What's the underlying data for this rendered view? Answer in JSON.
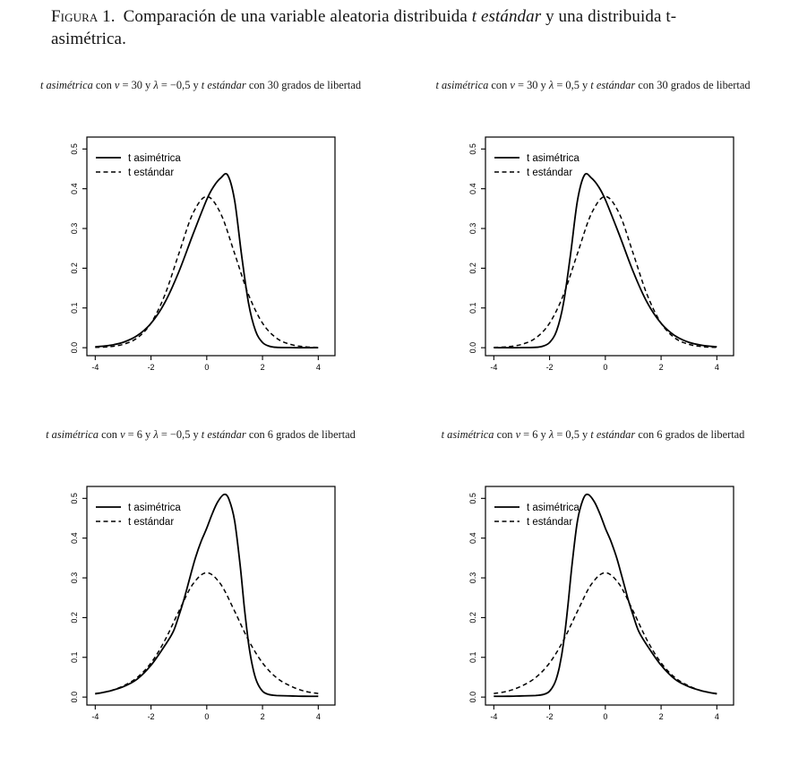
{
  "page": {
    "background": "#ffffff",
    "ink_color": "#000000"
  },
  "caption": {
    "label": "Figura 1.",
    "parts": [
      {
        "t": "Comparación de una variable aleatoria distribuida ",
        "i": false
      },
      {
        "t": "t estándar",
        "i": true
      },
      {
        "t": " y una distribuida t-asimétrica.",
        "i": false
      }
    ]
  },
  "legend": {
    "position": "top-left",
    "entries": [
      {
        "label": "t asimétrica",
        "line": "solid"
      },
      {
        "label": "t estándar",
        "line": "dashed"
      }
    ]
  },
  "axes": {
    "xticks": [
      -4,
      -2,
      0,
      2,
      4
    ],
    "ytick_labels": [
      "0.0",
      "0.1",
      "0.2",
      "0.3",
      "0.4",
      "0.5"
    ],
    "ytick_values": [
      0,
      0.1,
      0.2,
      0.3,
      0.4,
      0.5
    ],
    "xlim": [
      -4.3,
      4.6
    ],
    "ylim": [
      -0.02,
      0.53
    ],
    "xlabel": "",
    "ylabel": ""
  },
  "chart_data": [
    {
      "id": "nu30-lambda-neg05",
      "type": "line",
      "grid": false,
      "legend_position": "top-left",
      "params": {
        "nu": 30,
        "lambda": -0.5,
        "grados_de_libertad": 30
      },
      "title_parts": [
        {
          "t": "t asimétrica",
          "i": true
        },
        {
          "t": " con ",
          "i": false
        },
        {
          "t": "ν",
          "i": true
        },
        {
          "t": " = 30 y ",
          "i": false
        },
        {
          "t": "λ",
          "i": true
        },
        {
          "t": " = −0,5 y ",
          "i": false
        },
        {
          "t": "t estándar",
          "i": true
        },
        {
          "t": " con 30 grados de libertad",
          "i": false
        }
      ],
      "series": [
        {
          "name": "t asimétrica",
          "style": "solid",
          "peak": {
            "x": 0.75,
            "y": 0.434
          },
          "points": [
            [
              -4,
              0.0023
            ],
            [
              -3.5,
              0.0058
            ],
            [
              -3,
              0.0136
            ],
            [
              -2.5,
              0.0301
            ],
            [
              -2,
              0.0614
            ],
            [
              -1.5,
              0.1139
            ],
            [
              -1,
              0.1911
            ],
            [
              -0.5,
              0.2843
            ],
            [
              0,
              0.3727
            ],
            [
              0.25,
              0.4058
            ],
            [
              0.5,
              0.4271
            ],
            [
              0.75,
              0.4343
            ],
            [
              1,
              0.37
            ],
            [
              1.25,
              0.2334
            ],
            [
              1.5,
              0.1119
            ],
            [
              1.75,
              0.0424
            ],
            [
              2,
              0.0132
            ],
            [
              2.25,
              0.0036
            ],
            [
              2.5,
              0.0009
            ],
            [
              3,
              0.0002
            ],
            [
              3.5,
              0.0001
            ],
            [
              4,
              0.0001
            ]
          ]
        },
        {
          "name": "t estándar",
          "style": "dashed",
          "peak": {
            "x": 0,
            "y": 0.38
          },
          "points": [
            [
              -4,
              0.0007
            ],
            [
              -3.5,
              0.0025
            ],
            [
              -3,
              0.0083
            ],
            [
              -2.5,
              0.0242
            ],
            [
              -2,
              0.0618
            ],
            [
              -1.5,
              0.1333
            ],
            [
              -1,
              0.2367
            ],
            [
              -0.5,
              0.3375
            ],
            [
              0,
              0.3805
            ],
            [
              0.5,
              0.3375
            ],
            [
              1,
              0.2367
            ],
            [
              1.5,
              0.1333
            ],
            [
              2,
              0.0618
            ],
            [
              2.5,
              0.0242
            ],
            [
              3,
              0.0083
            ],
            [
              3.5,
              0.0025
            ],
            [
              4,
              0.0007
            ]
          ]
        }
      ]
    },
    {
      "id": "nu30-lambda-pos05",
      "type": "line",
      "grid": false,
      "legend_position": "top-left",
      "params": {
        "nu": 30,
        "lambda": 0.5,
        "grados_de_libertad": 30
      },
      "title_parts": [
        {
          "t": "t asimétrica",
          "i": true
        },
        {
          "t": " con ",
          "i": false
        },
        {
          "t": "ν",
          "i": true
        },
        {
          "t": " = 30 y ",
          "i": false
        },
        {
          "t": "λ",
          "i": true
        },
        {
          "t": " = 0,5 y ",
          "i": false
        },
        {
          "t": "t estándar",
          "i": true
        },
        {
          "t": " con 30 grados de libertad",
          "i": false
        }
      ],
      "series": [
        {
          "name": "t asimétrica",
          "style": "solid",
          "peak": {
            "x": -0.75,
            "y": 0.434
          },
          "points": [
            [
              -4,
              0.0001
            ],
            [
              -3.5,
              0.0001
            ],
            [
              -3,
              0.0002
            ],
            [
              -2.5,
              0.0009
            ],
            [
              -2.25,
              0.0036
            ],
            [
              -2,
              0.0132
            ],
            [
              -1.75,
              0.0424
            ],
            [
              -1.5,
              0.1119
            ],
            [
              -1.25,
              0.2334
            ],
            [
              -1,
              0.37
            ],
            [
              -0.75,
              0.4343
            ],
            [
              -0.5,
              0.4271
            ],
            [
              -0.25,
              0.4058
            ],
            [
              0,
              0.3727
            ],
            [
              0.5,
              0.2843
            ],
            [
              1,
              0.1911
            ],
            [
              1.5,
              0.1139
            ],
            [
              2,
              0.0614
            ],
            [
              2.5,
              0.0301
            ],
            [
              3,
              0.0136
            ],
            [
              3.5,
              0.0058
            ],
            [
              4,
              0.0023
            ]
          ]
        },
        {
          "name": "t estándar",
          "style": "dashed",
          "peak": {
            "x": 0,
            "y": 0.38
          },
          "points": [
            [
              -4,
              0.0007
            ],
            [
              -3.5,
              0.0025
            ],
            [
              -3,
              0.0083
            ],
            [
              -2.5,
              0.0242
            ],
            [
              -2,
              0.0618
            ],
            [
              -1.5,
              0.1333
            ],
            [
              -1,
              0.2367
            ],
            [
              -0.5,
              0.3375
            ],
            [
              0,
              0.3805
            ],
            [
              0.5,
              0.3375
            ],
            [
              1,
              0.2367
            ],
            [
              1.5,
              0.1333
            ],
            [
              2,
              0.0618
            ],
            [
              2.5,
              0.0242
            ],
            [
              3,
              0.0083
            ],
            [
              3.5,
              0.0025
            ],
            [
              4,
              0.0007
            ]
          ]
        }
      ]
    },
    {
      "id": "nu6-lambda-neg05",
      "type": "line",
      "grid": false,
      "legend_position": "top-left",
      "params": {
        "nu": 6,
        "lambda": -0.5,
        "grados_de_libertad": 6
      },
      "title_parts": [
        {
          "t": "t asimétrica",
          "i": true
        },
        {
          "t": " con ",
          "i": false
        },
        {
          "t": "ν",
          "i": true
        },
        {
          "t": " = 6 y ",
          "i": false
        },
        {
          "t": "λ",
          "i": true
        },
        {
          "t": " = −0,5 y ",
          "i": false
        },
        {
          "t": "t estándar",
          "i": true
        },
        {
          "t": " con 6 grados de libertad",
          "i": false
        }
      ],
      "series": [
        {
          "name": "t asimétrica",
          "style": "solid",
          "peak": {
            "x": 0.63,
            "y": 0.51
          },
          "points": [
            [
              -4,
              0.008
            ],
            [
              -3.5,
              0.015
            ],
            [
              -3,
              0.026
            ],
            [
              -2.5,
              0.045
            ],
            [
              -2,
              0.08
            ],
            [
              -1.5,
              0.13
            ],
            [
              -1.2,
              0.165
            ],
            [
              -1,
              0.205
            ],
            [
              -0.8,
              0.25
            ],
            [
              -0.6,
              0.302
            ],
            [
              -0.4,
              0.352
            ],
            [
              -0.2,
              0.392
            ],
            [
              0,
              0.425
            ],
            [
              0.2,
              0.462
            ],
            [
              0.4,
              0.492
            ],
            [
              0.63,
              0.51
            ],
            [
              0.8,
              0.497
            ],
            [
              1,
              0.443
            ],
            [
              1.2,
              0.33
            ],
            [
              1.35,
              0.225
            ],
            [
              1.5,
              0.135
            ],
            [
              1.65,
              0.075
            ],
            [
              1.8,
              0.038
            ],
            [
              2,
              0.015
            ],
            [
              2.2,
              0.007
            ],
            [
              2.5,
              0.004
            ],
            [
              3,
              0.003
            ],
            [
              3.5,
              0.002
            ],
            [
              4,
              0.002
            ]
          ]
        },
        {
          "name": "t estándar",
          "style": "dashed",
          "peak": {
            "x": 0,
            "y": 0.31
          },
          "points": [
            [
              -4,
              0.009
            ],
            [
              -3.5,
              0.015
            ],
            [
              -3,
              0.028
            ],
            [
              -2.5,
              0.049
            ],
            [
              -2,
              0.086
            ],
            [
              -1.5,
              0.143
            ],
            [
              -1,
              0.216
            ],
            [
              -0.5,
              0.284
            ],
            [
              0,
              0.313
            ],
            [
              0.5,
              0.284
            ],
            [
              1,
              0.216
            ],
            [
              1.5,
              0.143
            ],
            [
              2,
              0.086
            ],
            [
              2.5,
              0.049
            ],
            [
              3,
              0.028
            ],
            [
              3.5,
              0.015
            ],
            [
              4,
              0.009
            ]
          ]
        }
      ]
    },
    {
      "id": "nu6-lambda-pos05",
      "type": "line",
      "grid": false,
      "legend_position": "top-left",
      "params": {
        "nu": 6,
        "lambda": 0.5,
        "grados_de_libertad": 6
      },
      "title_parts": [
        {
          "t": "t asimétrica",
          "i": true
        },
        {
          "t": " con ",
          "i": false
        },
        {
          "t": "ν",
          "i": true
        },
        {
          "t": " = 6 y ",
          "i": false
        },
        {
          "t": "λ",
          "i": true
        },
        {
          "t": " = 0,5 y ",
          "i": false
        },
        {
          "t": "t estándar",
          "i": true
        },
        {
          "t": " con 6 grados de libertad",
          "i": false
        }
      ],
      "series": [
        {
          "name": "t asimétrica",
          "style": "solid",
          "peak": {
            "x": -0.63,
            "y": 0.51
          },
          "points": [
            [
              -4,
              0.002
            ],
            [
              -3.5,
              0.002
            ],
            [
              -3,
              0.003
            ],
            [
              -2.5,
              0.004
            ],
            [
              -2.2,
              0.007
            ],
            [
              -2,
              0.015
            ],
            [
              -1.8,
              0.038
            ],
            [
              -1.65,
              0.075
            ],
            [
              -1.5,
              0.135
            ],
            [
              -1.35,
              0.225
            ],
            [
              -1.2,
              0.33
            ],
            [
              -1,
              0.443
            ],
            [
              -0.8,
              0.497
            ],
            [
              -0.63,
              0.51
            ],
            [
              -0.4,
              0.492
            ],
            [
              -0.2,
              0.462
            ],
            [
              0,
              0.425
            ],
            [
              0.2,
              0.392
            ],
            [
              0.4,
              0.352
            ],
            [
              0.6,
              0.302
            ],
            [
              0.8,
              0.25
            ],
            [
              1,
              0.205
            ],
            [
              1.2,
              0.165
            ],
            [
              1.5,
              0.13
            ],
            [
              2,
              0.08
            ],
            [
              2.5,
              0.045
            ],
            [
              3,
              0.026
            ],
            [
              3.5,
              0.015
            ],
            [
              4,
              0.008
            ]
          ]
        },
        {
          "name": "t estándar",
          "style": "dashed",
          "peak": {
            "x": 0,
            "y": 0.31
          },
          "points": [
            [
              -4,
              0.009
            ],
            [
              -3.5,
              0.015
            ],
            [
              -3,
              0.028
            ],
            [
              -2.5,
              0.049
            ],
            [
              -2,
              0.086
            ],
            [
              -1.5,
              0.143
            ],
            [
              -1,
              0.216
            ],
            [
              -0.5,
              0.284
            ],
            [
              0,
              0.313
            ],
            [
              0.5,
              0.284
            ],
            [
              1,
              0.216
            ],
            [
              1.5,
              0.143
            ],
            [
              2,
              0.086
            ],
            [
              2.5,
              0.049
            ],
            [
              3,
              0.028
            ],
            [
              3.5,
              0.015
            ],
            [
              4,
              0.009
            ]
          ]
        }
      ]
    }
  ]
}
